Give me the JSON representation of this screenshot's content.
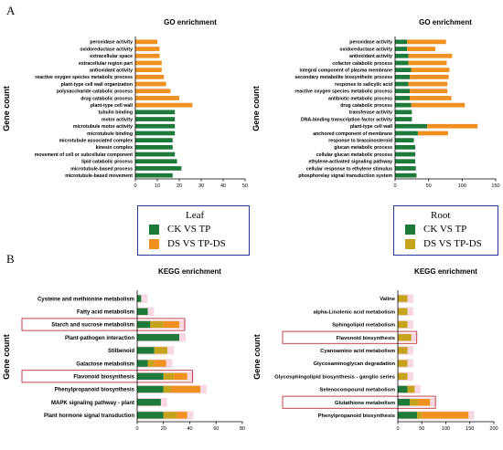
{
  "figure": {
    "panel_a": "A",
    "panel_b": "B"
  },
  "colors": {
    "green": "#1e7a3a",
    "orange": "#f0901e",
    "olive": "#c5a31a",
    "pink": "#f7d7e1",
    "highlight": "#c0303a"
  },
  "legend_leaf": {
    "title": "Leaf",
    "items": [
      {
        "label": "CK VS TP",
        "color": "#1e7a3a"
      },
      {
        "label": "DS VS TP-DS",
        "color": "#f0901e"
      }
    ]
  },
  "legend_root": {
    "title": "Root",
    "items": [
      {
        "label": "CK VS TP",
        "color": "#1e7a3a"
      },
      {
        "label": "DS VS TP-DS",
        "color": "#c5a31a"
      }
    ]
  },
  "chart_data": [
    {
      "id": "go-leaf",
      "type": "bar",
      "orientation": "horizontal",
      "title": "GO enrichment",
      "ylabel": "Gene count",
      "xlim": [
        0,
        50
      ],
      "xticks": [
        0,
        10,
        20,
        30,
        40,
        50
      ],
      "categories": [
        "peroxidase activity",
        "oxidoreductase activity",
        "extracellular space",
        "extracellular region part",
        "antioxidant activity",
        "reactive oxygen species metabolic process",
        "plant-type cell wall organization",
        "polysaccharide catabolic process",
        "drug catabolic process",
        "plant-type cell wall",
        "tubulin binding",
        "motor activity",
        "microtubule motor activity",
        "microtubule binding",
        "microtubule associated complex",
        "kinesin complex",
        "movement of cell or subcellular component",
        "lipid catabolic process",
        "microtubule-based process",
        "microtubule-based movement"
      ],
      "series": [
        {
          "color": "#1e7a3a",
          "values": [
            0,
            0,
            0,
            0,
            0,
            0,
            0,
            0,
            0,
            0,
            18,
            18,
            18,
            18,
            17,
            17,
            18,
            19,
            21,
            17
          ]
        },
        {
          "color": "#f0901e",
          "values": [
            10,
            11,
            11,
            12,
            12,
            13,
            14,
            16,
            20,
            26,
            0,
            0,
            0,
            0,
            0,
            0,
            0,
            0,
            0,
            0
          ]
        }
      ],
      "highlight": []
    },
    {
      "id": "go-root",
      "type": "bar",
      "orientation": "horizontal",
      "stacked": true,
      "title": "GO enrichment",
      "ylabel": "Gene count",
      "xlim": [
        0,
        150
      ],
      "xticks": [
        0,
        50,
        100,
        150
      ],
      "categories": [
        "peroxidase activity",
        "oxidoreductase activity",
        "antioxidant activity",
        "cofactor catabolic process",
        "integral component of plasma membrane",
        "secondary metabolite biosynthetic process",
        "response to salicylic acid",
        "reactive oxygen species metabolic process",
        "antibiotic metabolic process",
        "drug catabolic process",
        "transferase activity",
        "DNA-binding transcription factor activity",
        "plant-type cell wall",
        "anchored component of membrane",
        "response to brassinosteroid",
        "glucan metabolic process",
        "cellular glucan metabolic process",
        "ethylene-activated signaling pathway",
        "cellular response to ethylene stimulus",
        "phosphorelay signal transduction system"
      ],
      "series": [
        {
          "color": "#1e7a3a",
          "values": [
            18,
            18,
            20,
            20,
            24,
            22,
            20,
            22,
            22,
            24,
            25,
            25,
            48,
            34,
            28,
            30,
            30,
            30,
            31,
            32
          ]
        },
        {
          "color": "#f0901e",
          "values": [
            58,
            42,
            65,
            57,
            57,
            58,
            58,
            56,
            62,
            80,
            0,
            0,
            75,
            45,
            0,
            0,
            0,
            0,
            0,
            0
          ]
        }
      ],
      "highlight": []
    },
    {
      "id": "kegg-leaf",
      "type": "bar",
      "orientation": "horizontal",
      "stacked": true,
      "title": "KEGG enrichment",
      "ylabel": "Gene count",
      "xlim": [
        0,
        80
      ],
      "xticks": [
        0,
        20,
        40,
        60,
        80
      ],
      "categories": [
        "Cysteine and methionine metabolism",
        "Fatty acid metabolism",
        "Starch and sucrose metabolism",
        "Plant-pathogen interaction",
        "Stilbenoid",
        "Galactose metabolism",
        "Flavonoid biosynthesis",
        "Phenylpropanoid biosynthesis",
        "MAPK signaling pathway - plant",
        "Plant hormone signal transduction"
      ],
      "series": [
        {
          "color": "#1e7a3a",
          "values": [
            3,
            8,
            10,
            32,
            13,
            8,
            20,
            20,
            18,
            20
          ]
        },
        {
          "color": "#c5a31a",
          "values": [
            0,
            0,
            10,
            0,
            10,
            5,
            8,
            6,
            0,
            10
          ]
        },
        {
          "color": "#f0901e",
          "values": [
            0,
            0,
            12,
            0,
            0,
            9,
            10,
            22,
            0,
            8
          ]
        }
      ],
      "highlight": [
        "Starch and sucrose metabolism",
        "Flavonoid biosynthesis"
      ]
    },
    {
      "id": "kegg-root",
      "type": "bar",
      "orientation": "horizontal",
      "stacked": true,
      "title": "KEGG enrichment",
      "ylabel": "Gene count",
      "xlim": [
        0,
        200
      ],
      "xticks": [
        0,
        50,
        100,
        150,
        200
      ],
      "categories": [
        "Valine",
        "alpha-Linolenic acid metabolism",
        "Sphingolipid metabolism",
        "Flavonoid biosynthesis",
        "Cyanoamino acid metabolism",
        "Glycosaminoglycan degradation",
        "Glycosphingolipid biosynthesis - ganglio series",
        "Selenocompound metabolism",
        "Glutathione metabolism",
        "Phenylpropanoid biosynthesis"
      ],
      "series": [
        {
          "color": "#1e7a3a",
          "values": [
            0,
            0,
            0,
            0,
            0,
            0,
            0,
            20,
            25,
            40
          ]
        },
        {
          "color": "#c5a31a",
          "values": [
            20,
            20,
            20,
            28,
            20,
            20,
            20,
            15,
            17,
            10
          ]
        },
        {
          "color": "#f0901e",
          "values": [
            0,
            0,
            0,
            0,
            0,
            0,
            0,
            0,
            25,
            97
          ]
        }
      ],
      "highlight": [
        "Flavonoid biosynthesis",
        "Glutathione metabolism"
      ]
    }
  ]
}
